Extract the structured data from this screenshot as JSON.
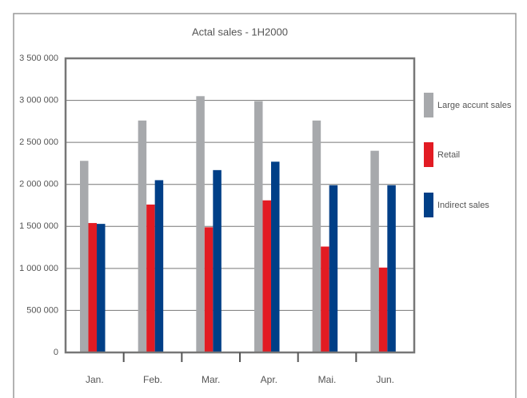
{
  "chart_data": {
    "type": "bar",
    "title": "Actal sales - 1H2000",
    "categories": [
      "Jan.",
      "Feb.",
      "Mar.",
      "Apr.",
      "Mai.",
      "Jun."
    ],
    "series": [
      {
        "name": "Large accunt sales",
        "color": "#a7a9ac",
        "values": [
          2280000,
          2760000,
          3050000,
          2990000,
          2760000,
          2400000
        ]
      },
      {
        "name": "Retail",
        "color": "#e21b23",
        "values": [
          1540000,
          1760000,
          1490000,
          1810000,
          1260000,
          1010000
        ]
      },
      {
        "name": "Indirect sales",
        "color": "#003f87",
        "values": [
          1530000,
          2050000,
          2170000,
          2270000,
          1990000,
          1990000
        ]
      }
    ],
    "ylim": [
      0,
      3500000
    ],
    "yticks": [
      0,
      {
        "value": 500000,
        "label": "500 000"
      },
      {
        "value": 1000000,
        "label": "1 000 000"
      },
      {
        "value": 1500000,
        "label": "1 500 000"
      },
      {
        "value": 2000000,
        "label": "2 000 000"
      },
      {
        "value": 2500000,
        "label": "2 500 000"
      },
      {
        "value": 3000000,
        "label": "3 000 000"
      },
      {
        "value": 3500000,
        "label": "3 500 000"
      }
    ],
    "grid": true,
    "legend": "right"
  }
}
